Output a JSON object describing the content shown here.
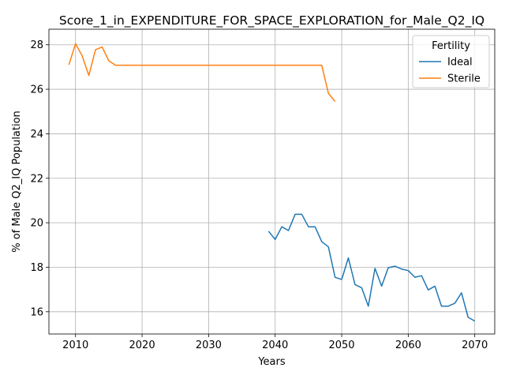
{
  "chart_data": {
    "type": "line",
    "title": "Score_1_in_EXPENDITURE_FOR_SPACE_EXPLORATION_for_Male_Q2_IQ",
    "xlabel": "Years",
    "ylabel": "% of Male Q2_IQ Population",
    "xlim": [
      2006,
      2073
    ],
    "ylim": [
      15.0,
      28.7
    ],
    "xticks": [
      2010,
      2020,
      2030,
      2040,
      2050,
      2060,
      2070
    ],
    "yticks": [
      16,
      18,
      20,
      22,
      24,
      26,
      28
    ],
    "grid": true,
    "legend": {
      "title": "Fertility",
      "placement": "top-right"
    },
    "series": [
      {
        "name": "Ideal",
        "color": "#1f77b4",
        "x": [
          2039,
          2040,
          2041,
          2042,
          2043,
          2044,
          2045,
          2046,
          2047,
          2048,
          2049,
          2050,
          2051,
          2052,
          2053,
          2054,
          2055,
          2056,
          2057,
          2058,
          2059,
          2060,
          2061,
          2062,
          2063,
          2064,
          2065,
          2066,
          2067,
          2068,
          2069,
          2070
        ],
        "y": [
          19.62,
          19.25,
          19.82,
          19.65,
          20.38,
          20.38,
          19.82,
          19.82,
          19.15,
          18.92,
          17.55,
          17.45,
          18.42,
          17.22,
          17.08,
          16.25,
          17.95,
          17.15,
          17.98,
          18.05,
          17.92,
          17.85,
          17.55,
          17.62,
          16.98,
          17.15,
          16.25,
          16.25,
          16.38,
          16.85,
          15.75,
          15.58
        ]
      },
      {
        "name": "Sterile",
        "color": "#ff7f0e",
        "x": [
          2009,
          2010,
          2011,
          2012,
          2013,
          2014,
          2015,
          2016,
          2017,
          2018,
          2019,
          2020,
          2021,
          2022,
          2023,
          2024,
          2025,
          2026,
          2027,
          2028,
          2029,
          2030,
          2031,
          2032,
          2033,
          2034,
          2035,
          2036,
          2037,
          2038,
          2039,
          2040,
          2041,
          2042,
          2043,
          2044,
          2045,
          2046,
          2047,
          2048,
          2049
        ],
        "y": [
          27.1,
          28.05,
          27.5,
          26.62,
          27.78,
          27.9,
          27.28,
          27.08,
          27.08,
          27.08,
          27.08,
          27.08,
          27.08,
          27.08,
          27.08,
          27.08,
          27.08,
          27.08,
          27.08,
          27.08,
          27.08,
          27.08,
          27.08,
          27.08,
          27.08,
          27.08,
          27.08,
          27.08,
          27.08,
          27.08,
          27.08,
          27.08,
          27.08,
          27.08,
          27.08,
          27.08,
          27.08,
          27.08,
          27.08,
          25.82,
          25.45
        ]
      }
    ]
  }
}
